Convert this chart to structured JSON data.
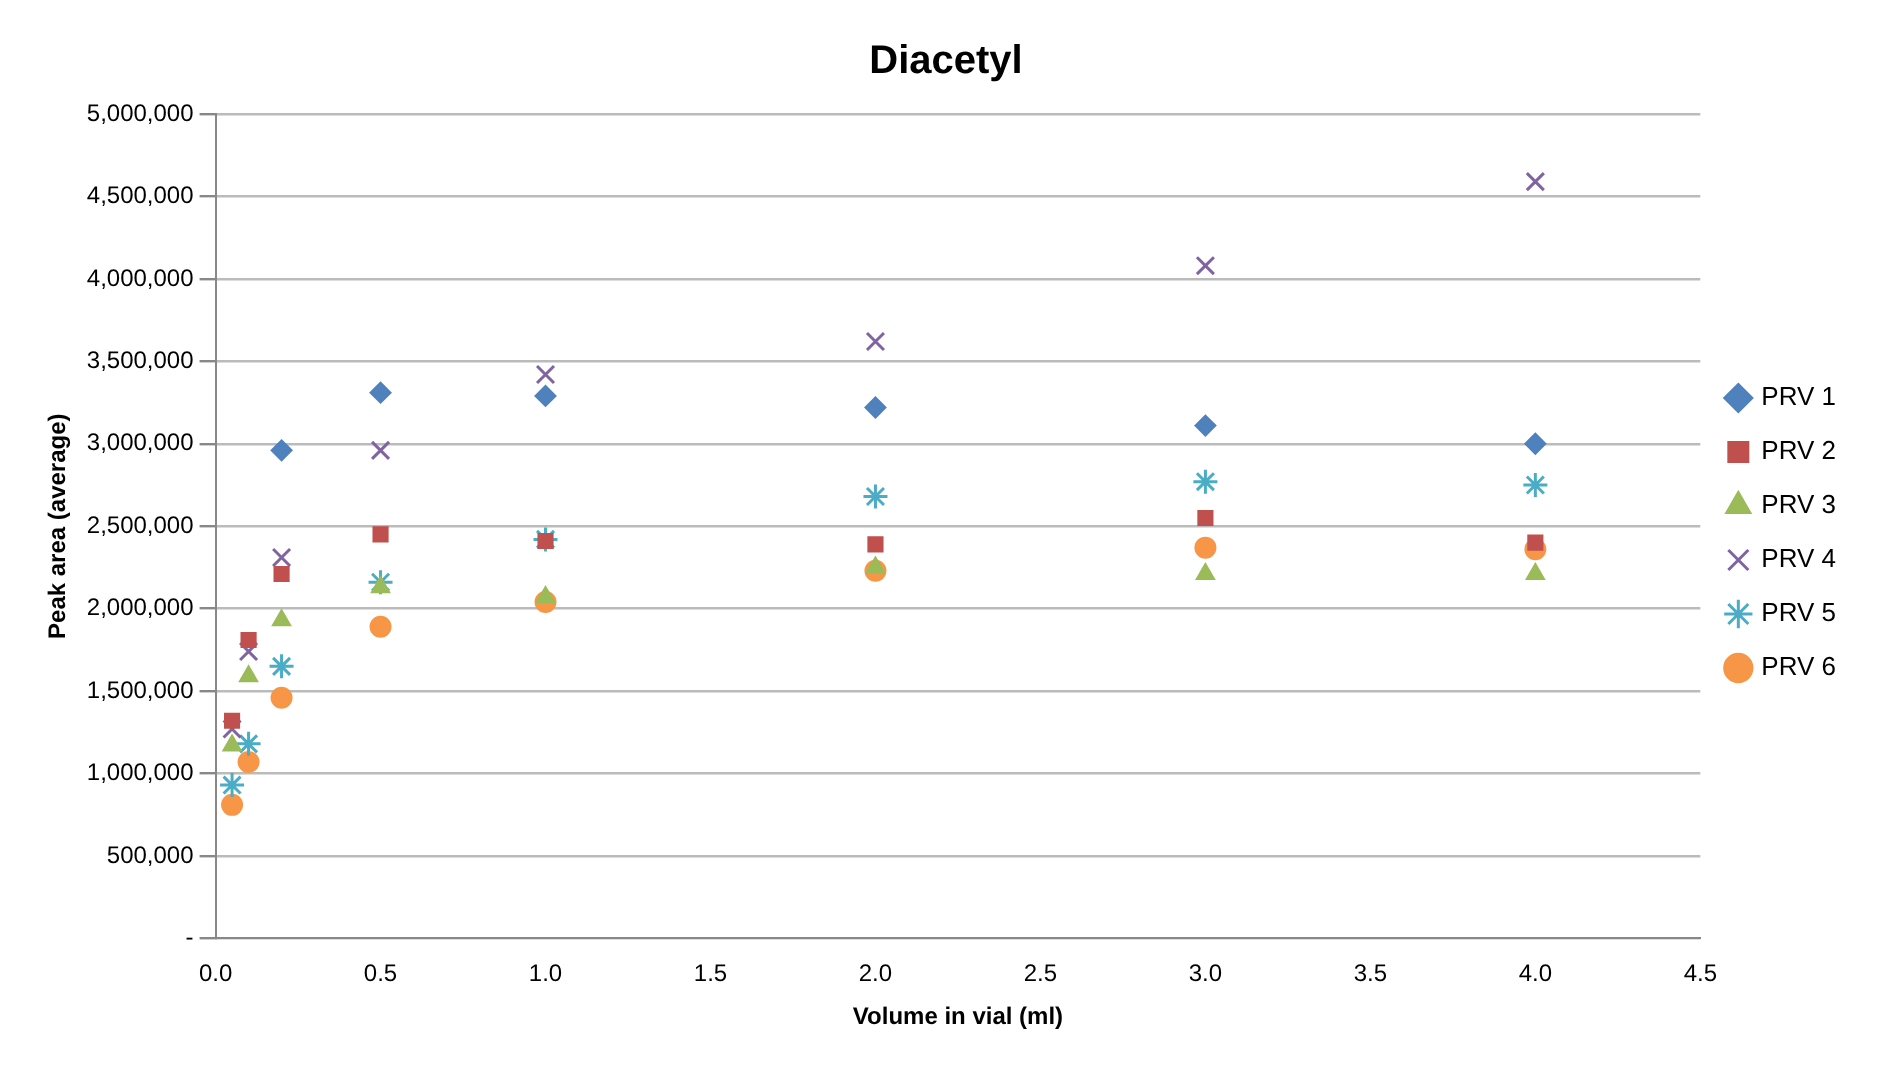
{
  "chart_data": {
    "type": "scatter",
    "title": "Diacetyl",
    "xlabel": "Volume in vial (ml)",
    "ylabel": "Peak area (average)",
    "x": [
      0.05,
      0.1,
      0.2,
      0.5,
      1.0,
      2.0,
      3.0,
      4.0
    ],
    "series": [
      {
        "name": "PRV 1",
        "color": "#4f81bd",
        "marker": "diamond",
        "values": [
          null,
          null,
          2960000,
          3310000,
          3290000,
          3220000,
          3110000,
          3000000
        ]
      },
      {
        "name": "PRV 2",
        "color": "#c0504d",
        "marker": "square",
        "values": [
          1320000,
          1810000,
          2210000,
          2450000,
          2410000,
          2390000,
          2550000,
          2400000
        ]
      },
      {
        "name": "PRV 3",
        "color": "#9bbb59",
        "marker": "triangle",
        "values": [
          1170000,
          1590000,
          1930000,
          2130000,
          2070000,
          2250000,
          2210000,
          2210000
        ]
      },
      {
        "name": "PRV 4",
        "color": "#8064a2",
        "marker": "cross",
        "values": [
          1270000,
          1740000,
          2310000,
          2960000,
          3420000,
          3620000,
          4080000,
          4590000
        ]
      },
      {
        "name": "PRV 5",
        "color": "#4bacc6",
        "values": [
          930000,
          1180000,
          1650000,
          2160000,
          2420000,
          2680000,
          2770000,
          2750000
        ]
      },
      {
        "name": "PRV 6",
        "color": "#f79646",
        "marker": "circle",
        "values": [
          810000,
          1070000,
          1460000,
          1890000,
          2040000,
          2230000,
          2370000,
          2360000
        ]
      }
    ],
    "xlim": [
      0,
      4.5
    ],
    "xticks": [
      {
        "value": 0,
        "label": "0.0"
      },
      {
        "value": 0.5,
        "label": "0.5"
      },
      {
        "value": 1,
        "label": "1.0"
      },
      {
        "value": 1.5,
        "label": "1.5"
      },
      {
        "value": 2,
        "label": "2.0"
      },
      {
        "value": 2.5,
        "label": "2.5"
      },
      {
        "value": 3,
        "label": "3.0"
      },
      {
        "value": 3.5,
        "label": "3.5"
      },
      {
        "value": 4,
        "label": "4.0"
      },
      {
        "value": 4.5,
        "label": "4.5"
      }
    ],
    "ylim": [
      0,
      5000000
    ],
    "yticks": [
      {
        "value": 0,
        "label": "-"
      },
      {
        "value": 500000,
        "label": "500,000"
      },
      {
        "value": 1000000,
        "label": "1,000,000"
      },
      {
        "value": 1500000,
        "label": "1,500,000"
      },
      {
        "value": 2000000,
        "label": "2,000,000"
      },
      {
        "value": 2500000,
        "label": "2,500,000"
      },
      {
        "value": 3000000,
        "label": "3,000,000"
      },
      {
        "value": 3500000,
        "label": "3,500,000"
      },
      {
        "value": 4000000,
        "label": "4,000,000"
      },
      {
        "value": 4500000,
        "label": "4,500,000"
      },
      {
        "value": 5000000,
        "label": "5,000,000"
      }
    ],
    "grid": "y",
    "legend": "right"
  }
}
